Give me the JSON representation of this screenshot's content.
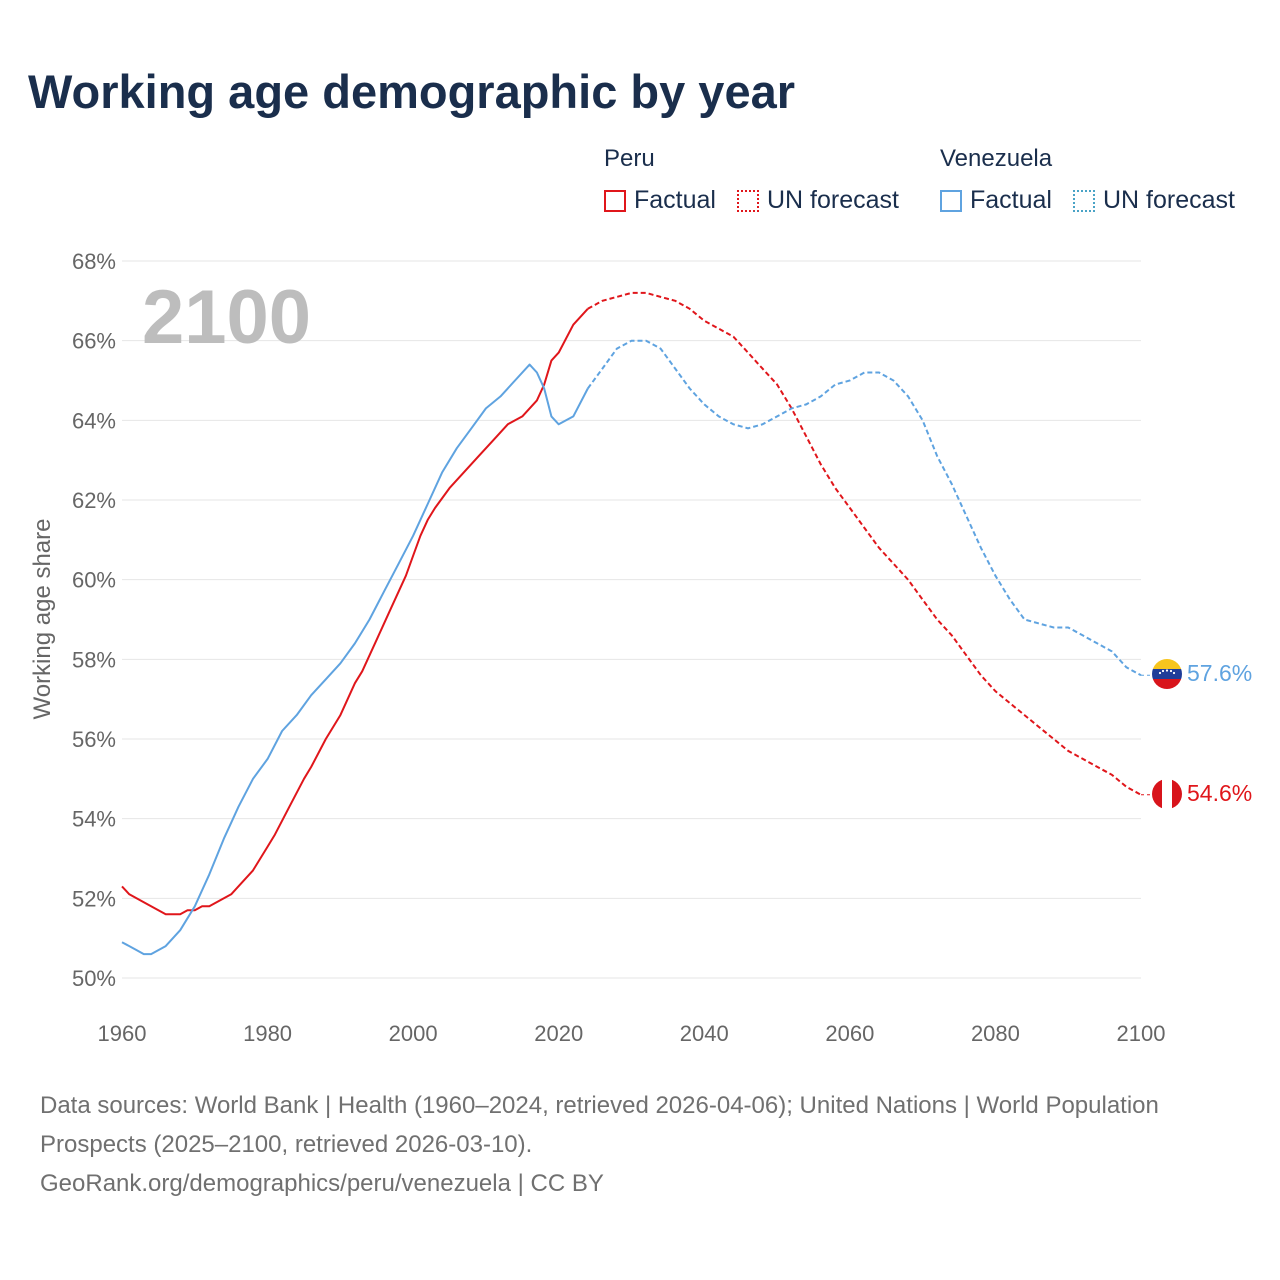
{
  "title": "Working age demographic by year",
  "legend": {
    "peru": {
      "name": "Peru",
      "factual": "Factual",
      "forecast": "UN forecast",
      "color": "#e0161b"
    },
    "venezuela": {
      "name": "Venezuela",
      "factual": "Factual",
      "forecast": "UN forecast",
      "color": "#5fa3e0"
    }
  },
  "footer": {
    "sources": "Data sources: World Bank | Health (1960–2024, retrieved 2026-04-06); United Nations | World Population Prospects (2025–2100, retrieved 2026-03-10).",
    "link": "GeoRank.org/demographics/peru/venezuela | CC BY"
  },
  "chart_data": {
    "type": "line",
    "year_watermark": "2100",
    "ylabel": "Working age share",
    "xlim": [
      1960,
      2100
    ],
    "ylim": [
      50,
      68
    ],
    "x_ticks": [
      "1960",
      "1980",
      "2000",
      "2020",
      "2040",
      "2060",
      "2080",
      "2100"
    ],
    "y_ticks": [
      "50%",
      "52%",
      "54%",
      "56%",
      "58%",
      "60%",
      "62%",
      "64%",
      "66%",
      "68%"
    ],
    "forecast_start": 2024,
    "series": [
      {
        "name": "Peru",
        "color": "#e0161b",
        "end_label": "54.6%",
        "points": [
          [
            1960,
            52.3
          ],
          [
            1961,
            52.1
          ],
          [
            1963,
            51.9
          ],
          [
            1965,
            51.7
          ],
          [
            1966,
            51.6
          ],
          [
            1968,
            51.6
          ],
          [
            1969,
            51.7
          ],
          [
            1970,
            51.7
          ],
          [
            1971,
            51.8
          ],
          [
            1972,
            51.8
          ],
          [
            1975,
            52.1
          ],
          [
            1978,
            52.7
          ],
          [
            1980,
            53.3
          ],
          [
            1981,
            53.6
          ],
          [
            1983,
            54.3
          ],
          [
            1985,
            55.0
          ],
          [
            1986,
            55.3
          ],
          [
            1988,
            56.0
          ],
          [
            1990,
            56.6
          ],
          [
            1992,
            57.4
          ],
          [
            1993,
            57.7
          ],
          [
            1995,
            58.5
          ],
          [
            1997,
            59.3
          ],
          [
            1999,
            60.1
          ],
          [
            2000,
            60.6
          ],
          [
            2001,
            61.1
          ],
          [
            2002,
            61.5
          ],
          [
            2003,
            61.8
          ],
          [
            2005,
            62.3
          ],
          [
            2007,
            62.7
          ],
          [
            2009,
            63.1
          ],
          [
            2011,
            63.5
          ],
          [
            2012,
            63.7
          ],
          [
            2013,
            63.9
          ],
          [
            2015,
            64.1
          ],
          [
            2017,
            64.5
          ],
          [
            2018,
            64.9
          ],
          [
            2019,
            65.5
          ],
          [
            2020,
            65.7
          ],
          [
            2022,
            66.4
          ],
          [
            2024,
            66.8
          ],
          [
            2026,
            67.0
          ],
          [
            2028,
            67.1
          ],
          [
            2030,
            67.2
          ],
          [
            2032,
            67.2
          ],
          [
            2034,
            67.1
          ],
          [
            2036,
            67.0
          ],
          [
            2038,
            66.8
          ],
          [
            2040,
            66.5
          ],
          [
            2042,
            66.3
          ],
          [
            2044,
            66.1
          ],
          [
            2046,
            65.7
          ],
          [
            2048,
            65.3
          ],
          [
            2050,
            64.9
          ],
          [
            2052,
            64.3
          ],
          [
            2054,
            63.6
          ],
          [
            2056,
            62.9
          ],
          [
            2058,
            62.3
          ],
          [
            2060,
            61.8
          ],
          [
            2062,
            61.3
          ],
          [
            2064,
            60.8
          ],
          [
            2066,
            60.4
          ],
          [
            2068,
            60.0
          ],
          [
            2070,
            59.5
          ],
          [
            2072,
            59.0
          ],
          [
            2074,
            58.6
          ],
          [
            2076,
            58.1
          ],
          [
            2078,
            57.6
          ],
          [
            2080,
            57.2
          ],
          [
            2082,
            56.9
          ],
          [
            2084,
            56.6
          ],
          [
            2086,
            56.3
          ],
          [
            2088,
            56.0
          ],
          [
            2090,
            55.7
          ],
          [
            2092,
            55.5
          ],
          [
            2094,
            55.3
          ],
          [
            2096,
            55.1
          ],
          [
            2098,
            54.8
          ],
          [
            2100,
            54.6
          ]
        ]
      },
      {
        "name": "Venezuela",
        "color": "#5fa3e0",
        "end_label": "57.6%",
        "points": [
          [
            1960,
            50.9
          ],
          [
            1962,
            50.7
          ],
          [
            1963,
            50.6
          ],
          [
            1964,
            50.6
          ],
          [
            1966,
            50.8
          ],
          [
            1968,
            51.2
          ],
          [
            1970,
            51.8
          ],
          [
            1972,
            52.6
          ],
          [
            1974,
            53.5
          ],
          [
            1975,
            53.9
          ],
          [
            1976,
            54.3
          ],
          [
            1978,
            55.0
          ],
          [
            1980,
            55.5
          ],
          [
            1982,
            56.2
          ],
          [
            1984,
            56.6
          ],
          [
            1986,
            57.1
          ],
          [
            1988,
            57.5
          ],
          [
            1990,
            57.9
          ],
          [
            1992,
            58.4
          ],
          [
            1994,
            59.0
          ],
          [
            1996,
            59.7
          ],
          [
            1998,
            60.4
          ],
          [
            2000,
            61.1
          ],
          [
            2002,
            61.9
          ],
          [
            2004,
            62.7
          ],
          [
            2006,
            63.3
          ],
          [
            2008,
            63.8
          ],
          [
            2010,
            64.3
          ],
          [
            2012,
            64.6
          ],
          [
            2014,
            65.0
          ],
          [
            2016,
            65.4
          ],
          [
            2017,
            65.2
          ],
          [
            2018,
            64.8
          ],
          [
            2019,
            64.1
          ],
          [
            2020,
            63.9
          ],
          [
            2022,
            64.1
          ],
          [
            2024,
            64.8
          ],
          [
            2026,
            65.3
          ],
          [
            2028,
            65.8
          ],
          [
            2030,
            66.0
          ],
          [
            2032,
            66.0
          ],
          [
            2034,
            65.8
          ],
          [
            2036,
            65.3
          ],
          [
            2038,
            64.8
          ],
          [
            2040,
            64.4
          ],
          [
            2042,
            64.1
          ],
          [
            2044,
            63.9
          ],
          [
            2046,
            63.8
          ],
          [
            2048,
            63.9
          ],
          [
            2050,
            64.1
          ],
          [
            2052,
            64.3
          ],
          [
            2054,
            64.4
          ],
          [
            2056,
            64.6
          ],
          [
            2058,
            64.9
          ],
          [
            2060,
            65.0
          ],
          [
            2062,
            65.2
          ],
          [
            2064,
            65.2
          ],
          [
            2066,
            65.0
          ],
          [
            2068,
            64.6
          ],
          [
            2070,
            64.0
          ],
          [
            2072,
            63.1
          ],
          [
            2074,
            62.4
          ],
          [
            2076,
            61.6
          ],
          [
            2078,
            60.8
          ],
          [
            2080,
            60.1
          ],
          [
            2082,
            59.5
          ],
          [
            2084,
            59.0
          ],
          [
            2086,
            58.9
          ],
          [
            2088,
            58.8
          ],
          [
            2090,
            58.8
          ],
          [
            2092,
            58.6
          ],
          [
            2094,
            58.4
          ],
          [
            2096,
            58.2
          ],
          [
            2098,
            57.8
          ],
          [
            2100,
            57.6
          ]
        ]
      }
    ]
  }
}
